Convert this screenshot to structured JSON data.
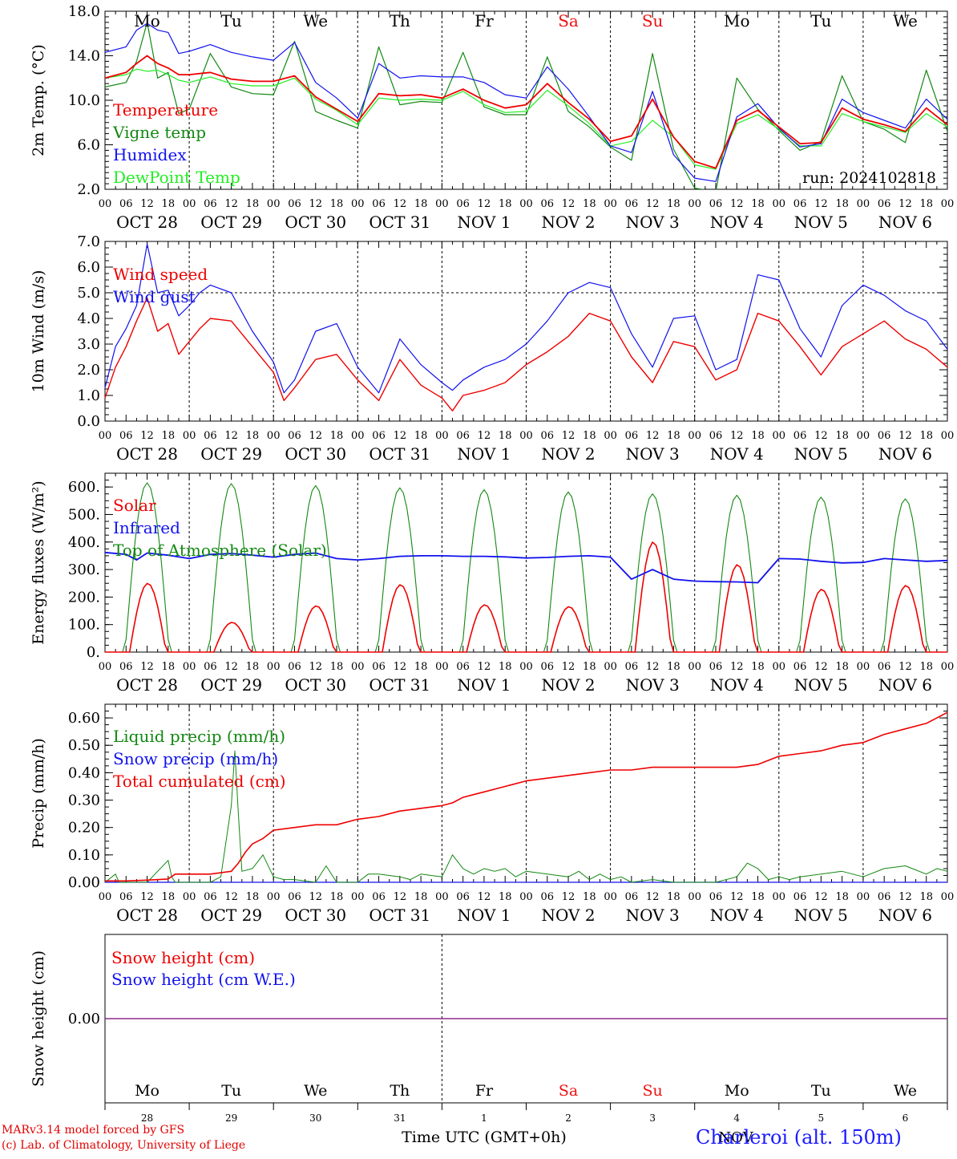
{
  "run_label": "run: 2024102818",
  "xaxis_title": "Time UTC (GMT+0h)",
  "station": "Charleroi (alt. 150m)",
  "credits": [
    "MARv3.14 model forced by GFS",
    "(c) Lab. of Climatology, University of Liege"
  ],
  "weekday_labels": [
    "Mo",
    "Tu",
    "We",
    "Th",
    "Fr",
    "Sa",
    "Su",
    "Mo",
    "Tu",
    "We"
  ],
  "weekend_flags": [
    false,
    false,
    false,
    false,
    false,
    true,
    true,
    false,
    false,
    false
  ],
  "date_labels": [
    "OCT 28",
    "OCT 29",
    "OCT 30",
    "OCT 31",
    "NOV  1",
    "NOV  2",
    "NOV  3",
    "NOV  4",
    "NOV  5",
    "NOV  6"
  ],
  "hour_ticks": [
    "00",
    "06",
    "12",
    "18"
  ],
  "last_hour_label": "00",
  "snow_day_numbers": [
    "28",
    "29",
    "30",
    "31",
    "1",
    "2",
    "3",
    "4",
    "5",
    "6"
  ],
  "snow_month_label": "NOV",
  "colors": {
    "red": "#ee0000",
    "green": "#118811",
    "blue": "#1111ee",
    "lightgreen": "#22ee22",
    "purple": "#7a2a9a",
    "weekend": "#ee1111"
  },
  "chart_data": [
    {
      "id": "temperature",
      "type": "line",
      "ylabel": "2m Temp. (°C)",
      "ylim": [
        2.0,
        18.0
      ],
      "yticks": [
        "2.0",
        "6.0",
        "10.0",
        "14.0",
        "18.0"
      ],
      "x_unit": "hours since 2024-10-28 00 UTC",
      "x": [
        0,
        6,
        9,
        12,
        15,
        18,
        21,
        24,
        30,
        36,
        42,
        48,
        54,
        60,
        66,
        72,
        78,
        84,
        90,
        96,
        102,
        108,
        114,
        120,
        126,
        132,
        138,
        144,
        150,
        156,
        162,
        168,
        174,
        180,
        186,
        192,
        198,
        204,
        210,
        216,
        222,
        228,
        234,
        240
      ],
      "series": [
        {
          "name": "Temperature",
          "color": "red",
          "values": [
            12,
            12.5,
            13.3,
            14,
            13.3,
            12.9,
            12.3,
            12.3,
            12.5,
            11.9,
            11.7,
            11.7,
            12.2,
            10.3,
            9.2,
            8.1,
            10.6,
            10.4,
            10.5,
            10.2,
            11,
            10,
            9.3,
            9.6,
            11.5,
            9.8,
            8.3,
            6.3,
            6.8,
            10.1,
            6.7,
            4.5,
            3.9,
            8.2,
            9.1,
            7.6,
            6.1,
            6.2,
            9.3,
            8.3,
            7.8,
            7.2,
            9.3,
            7.8
          ]
        },
        {
          "name": "Vigne temp",
          "color": "green",
          "values": [
            11.2,
            11.6,
            13.5,
            17,
            12,
            12.5,
            8.8,
            9.2,
            14.2,
            11.2,
            10.6,
            10.5,
            15.3,
            9,
            8.2,
            7.5,
            14.8,
            9.6,
            9.9,
            9.8,
            14.3,
            9.4,
            8.7,
            8.7,
            13.9,
            9,
            7.6,
            5.8,
            4.6,
            14.2,
            5.6,
            2.1,
            1.8,
            12,
            9.2,
            7.3,
            5.5,
            6.3,
            12.2,
            8.1,
            7.4,
            6.2,
            12.7,
            7.2
          ]
        },
        {
          "name": "Humidex",
          "color": "blue",
          "values": [
            14.3,
            14.8,
            16.3,
            16.9,
            16.3,
            16.1,
            14.2,
            14.4,
            15,
            14.3,
            13.9,
            13.6,
            15.2,
            11.6,
            10.2,
            8.4,
            13.3,
            12,
            12.2,
            12.1,
            12.1,
            11.6,
            10.5,
            10.2,
            13,
            11,
            8.5,
            5.9,
            5.3,
            10.8,
            5.1,
            3,
            2.7,
            8.5,
            9.7,
            7.5,
            5.8,
            6.1,
            10.1,
            8.9,
            8.2,
            7.5,
            10.1,
            8.3
          ]
        },
        {
          "name": "DewPoint Temp",
          "color": "lightgreen",
          "values": [
            12,
            12.3,
            12.8,
            12.6,
            12.7,
            12.3,
            11.8,
            11.6,
            12.1,
            11.5,
            11.3,
            11.3,
            12,
            10.1,
            9.1,
            7.8,
            10.2,
            10,
            10.1,
            10,
            10.8,
            9.6,
            8.9,
            9,
            10.9,
            9.5,
            7.9,
            5.9,
            6.3,
            8.2,
            6.7,
            4.2,
            3.8,
            7.9,
            8.7,
            7.4,
            5.9,
            5.9,
            8.8,
            8.1,
            7.6,
            7.1,
            8.8,
            7.6
          ]
        }
      ]
    },
    {
      "id": "wind",
      "type": "line",
      "ylabel": "10m Wind (m/s)",
      "ylim": [
        0.0,
        7.0
      ],
      "yticks": [
        "0.0",
        "1.0",
        "2.0",
        "3.0",
        "4.0",
        "5.0",
        "6.0",
        "7.0"
      ],
      "reference_line": 5.0,
      "x_unit": "hours since 2024-10-28 00 UTC",
      "x": [
        0,
        3,
        6,
        9,
        12,
        15,
        18,
        21,
        24,
        27,
        30,
        36,
        42,
        48,
        51,
        54,
        60,
        66,
        72,
        78,
        84,
        90,
        96,
        99,
        102,
        108,
        114,
        120,
        126,
        132,
        138,
        144,
        150,
        156,
        162,
        168,
        174,
        180,
        186,
        192,
        198,
        204,
        210,
        216,
        222,
        228,
        234,
        240
      ],
      "series": [
        {
          "name": "Wind speed",
          "color": "red",
          "values": [
            0.9,
            2.1,
            2.9,
            3.9,
            4.8,
            3.5,
            3.8,
            2.6,
            3.1,
            3.6,
            4,
            3.9,
            2.9,
            1.9,
            0.8,
            1.3,
            2.4,
            2.6,
            1.6,
            0.8,
            2.4,
            1.4,
            0.9,
            0.4,
            1,
            1.2,
            1.5,
            2.2,
            2.7,
            3.3,
            4.2,
            3.9,
            2.5,
            1.5,
            3.1,
            2.9,
            1.6,
            2,
            4.2,
            3.9,
            2.9,
            1.8,
            2.9,
            3.4,
            3.9,
            3.2,
            2.8,
            2.1
          ]
        },
        {
          "name": "Wind gust",
          "color": "blue",
          "values": [
            1.3,
            2.9,
            3.6,
            4.5,
            6.9,
            5,
            5.1,
            4.1,
            4.5,
            5,
            5.3,
            5,
            3.5,
            2.3,
            1.1,
            1.6,
            3.5,
            3.8,
            2.1,
            1.1,
            3.2,
            2.2,
            1.5,
            1.2,
            1.6,
            2.1,
            2.4,
            3,
            3.9,
            5,
            5.4,
            5.2,
            3.4,
            2.1,
            4,
            4.1,
            2,
            2.4,
            5.7,
            5.5,
            3.6,
            2.5,
            4.5,
            5.3,
            4.9,
            4.3,
            3.9,
            2.8
          ]
        }
      ]
    },
    {
      "id": "energy",
      "type": "line",
      "ylabel": "Energy fluxes (W/m²)",
      "ylim": [
        0,
        650
      ],
      "yticks": [
        "0.",
        "100.",
        "200.",
        "300.",
        "400.",
        "500.",
        "600."
      ],
      "x_unit": "hours since 2024-10-28 00 UTC",
      "toa_peaks": [
        615,
        612,
        605,
        597,
        590,
        582,
        575,
        570,
        563,
        557
      ],
      "solar_peaks": [
        250,
        108,
        168,
        245,
        172,
        165,
        400,
        318,
        228,
        242
      ],
      "infrared": {
        "x": [
          0,
          6,
          9,
          12,
          18,
          24,
          30,
          36,
          42,
          48,
          54,
          60,
          66,
          72,
          78,
          84,
          90,
          96,
          102,
          108,
          114,
          120,
          126,
          132,
          138,
          144,
          150,
          156,
          162,
          168,
          174,
          180,
          186,
          192,
          198,
          204,
          210,
          216,
          222,
          228,
          234,
          240
        ],
        "values": [
          362,
          355,
          335,
          360,
          352,
          340,
          355,
          358,
          352,
          345,
          355,
          360,
          340,
          335,
          340,
          348,
          350,
          350,
          348,
          348,
          346,
          342,
          344,
          348,
          350,
          345,
          265,
          300,
          265,
          258,
          256,
          255,
          252,
          340,
          338,
          330,
          324,
          326,
          340,
          335,
          330,
          333
        ]
      },
      "series": [
        {
          "name": "Solar",
          "color": "red"
        },
        {
          "name": "Infrared",
          "color": "blue"
        },
        {
          "name": "Top of Atmosphere (Solar)",
          "color": "green"
        }
      ]
    },
    {
      "id": "precip",
      "type": "line",
      "ylabel": "Precip (mm/h)",
      "ylim": [
        0.0,
        0.65
      ],
      "yticks": [
        "0.00",
        "0.10",
        "0.20",
        "0.30",
        "0.40",
        "0.50",
        "0.60"
      ],
      "x_unit": "hours since 2024-10-28 00 UTC",
      "series": [
        {
          "name": "Liquid precip (mm/h)",
          "color": "green",
          "x": [
            0,
            3,
            4,
            6,
            12,
            18,
            19,
            20,
            24,
            30,
            33,
            36,
            37,
            38,
            39,
            42,
            45,
            48,
            51,
            54,
            60,
            63,
            66,
            72,
            75,
            78,
            84,
            87,
            90,
            96,
            99,
            102,
            105,
            108,
            111,
            114,
            117,
            120,
            126,
            132,
            135,
            138,
            141,
            144,
            147,
            150,
            156,
            162,
            168,
            174,
            180,
            183,
            186,
            189,
            192,
            195,
            198,
            204,
            210,
            216,
            222,
            228,
            234,
            237,
            240
          ],
          "values": [
            0,
            0.03,
            0,
            0,
            0,
            0.08,
            0.02,
            0,
            0,
            0,
            0.02,
            0.28,
            0.48,
            0.25,
            0.04,
            0.05,
            0.1,
            0.02,
            0.01,
            0.01,
            0,
            0.06,
            0,
            0,
            0.03,
            0.03,
            0.02,
            0.01,
            0.03,
            0.02,
            0.1,
            0.05,
            0.03,
            0.05,
            0.04,
            0.05,
            0.02,
            0.04,
            0.03,
            0.02,
            0.04,
            0.01,
            0.03,
            0.01,
            0.02,
            0,
            0.01,
            0,
            0,
            0,
            0.02,
            0.07,
            0.05,
            0.01,
            0.02,
            0.01,
            0.02,
            0.03,
            0.04,
            0.02,
            0.05,
            0.06,
            0.03,
            0.05,
            0.04
          ]
        },
        {
          "name": "Snow precip (mm/h)",
          "color": "blue",
          "x": [
            0,
            240
          ],
          "values": [
            0,
            0
          ]
        },
        {
          "name": "Total cumulated (cm)",
          "color": "red",
          "x": [
            0,
            6,
            12,
            18,
            20,
            24,
            30,
            36,
            38,
            40,
            42,
            45,
            48,
            54,
            60,
            66,
            72,
            78,
            84,
            90,
            96,
            99,
            102,
            105,
            108,
            114,
            120,
            126,
            132,
            138,
            144,
            150,
            156,
            162,
            168,
            174,
            180,
            186,
            192,
            198,
            204,
            210,
            216,
            222,
            228,
            234,
            240
          ],
          "values": [
            0.005,
            0.005,
            0.008,
            0.012,
            0.03,
            0.03,
            0.03,
            0.04,
            0.07,
            0.11,
            0.14,
            0.16,
            0.19,
            0.2,
            0.21,
            0.21,
            0.23,
            0.24,
            0.26,
            0.27,
            0.28,
            0.29,
            0.31,
            0.32,
            0.33,
            0.35,
            0.37,
            0.38,
            0.39,
            0.4,
            0.41,
            0.41,
            0.42,
            0.42,
            0.42,
            0.42,
            0.42,
            0.43,
            0.46,
            0.47,
            0.48,
            0.5,
            0.51,
            0.54,
            0.56,
            0.58,
            0.62
          ]
        }
      ]
    },
    {
      "id": "snow",
      "type": "line",
      "ylabel": "Snow height (cm)",
      "yticks": [
        "0.00"
      ],
      "series": [
        {
          "name": "Snow height (cm)",
          "color": "red",
          "x": [
            0,
            240
          ],
          "values": [
            0,
            0
          ]
        },
        {
          "name": "Snow height (cm W.E.)",
          "color": "blue",
          "x": [
            0,
            240
          ],
          "values": [
            0,
            0
          ]
        }
      ]
    }
  ]
}
